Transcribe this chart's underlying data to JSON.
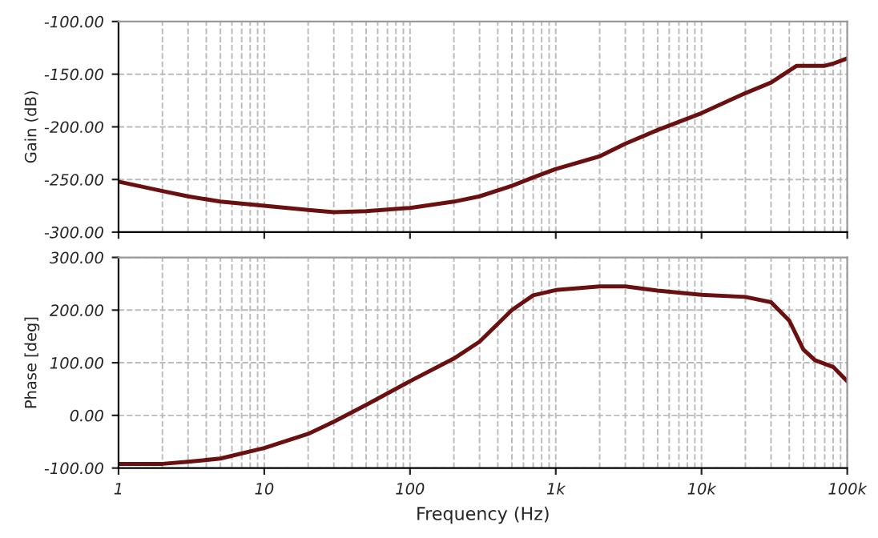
{
  "chart_data": [
    {
      "type": "line",
      "ylabel": "Gain (dB)",
      "log": "x",
      "grid": true,
      "tick_labels": "y",
      "line_style": "solid",
      "xlim": [
        1,
        100000
      ],
      "xticks": [
        {
          "value": 1,
          "label": null
        },
        {
          "value": 10,
          "label": null
        },
        {
          "value": 100,
          "label": null
        },
        {
          "value": 1000,
          "label": null
        },
        {
          "value": 10000,
          "label": null
        },
        {
          "value": 100000,
          "label": null
        }
      ],
      "ylim": [
        -300,
        -100
      ],
      "yticks": [
        {
          "value": -300,
          "label": "-300.00"
        },
        {
          "value": -250,
          "label": "-250.00"
        },
        {
          "value": -200,
          "label": "-200.00"
        },
        {
          "value": -150,
          "label": "-150.00"
        },
        {
          "value": -100,
          "label": "-100.00"
        }
      ],
      "x": [
        1,
        2,
        3,
        5,
        10,
        20,
        30,
        50,
        100,
        200,
        300,
        500,
        700,
        1000,
        2000,
        3000,
        5000,
        10000,
        20000,
        30000,
        45000,
        70000,
        80000,
        100000
      ],
      "series": [
        {
          "color": "#6b1010",
          "values": [
            -252,
            -261,
            -266,
            -271,
            -275,
            -279,
            -281,
            -280,
            -277,
            -271,
            -266,
            -256,
            -248,
            -240,
            -228,
            -216,
            -203,
            -187,
            -168,
            -158,
            -142,
            -142,
            -140,
            -135
          ]
        }
      ]
    },
    {
      "type": "line",
      "xlabel": "Frequency (Hz)",
      "ylabel": "Phase [deg]",
      "log": "x",
      "grid": true,
      "line_style": "solid",
      "xlim": [
        1,
        100000
      ],
      "xticks": [
        {
          "value": 1,
          "label": "1"
        },
        {
          "value": 10,
          "label": "10"
        },
        {
          "value": 100,
          "label": "100"
        },
        {
          "value": 1000,
          "label": "1k"
        },
        {
          "value": 10000,
          "label": "10k"
        },
        {
          "value": 100000,
          "label": "100k"
        }
      ],
      "ylim": [
        -100,
        300
      ],
      "yticks": [
        {
          "value": -100,
          "label": "-100.00"
        },
        {
          "value": 0,
          "label": "0.00"
        },
        {
          "value": 100,
          "label": "100.00"
        },
        {
          "value": 200,
          "label": "200.00"
        },
        {
          "value": 300,
          "label": "300.00"
        }
      ],
      "x": [
        1,
        2,
        3,
        5,
        10,
        20,
        30,
        50,
        100,
        200,
        300,
        500,
        700,
        1000,
        2000,
        3000,
        5000,
        10000,
        20000,
        30000,
        40000,
        50000,
        60000,
        80000,
        100000
      ],
      "series": [
        {
          "color": "#6b1010",
          "values": [
            -92,
            -92,
            -88,
            -82,
            -62,
            -35,
            -12,
            20,
            65,
            108,
            140,
            200,
            228,
            238,
            245,
            245,
            237,
            229,
            225,
            215,
            180,
            125,
            105,
            92,
            65
          ]
        }
      ]
    }
  ]
}
